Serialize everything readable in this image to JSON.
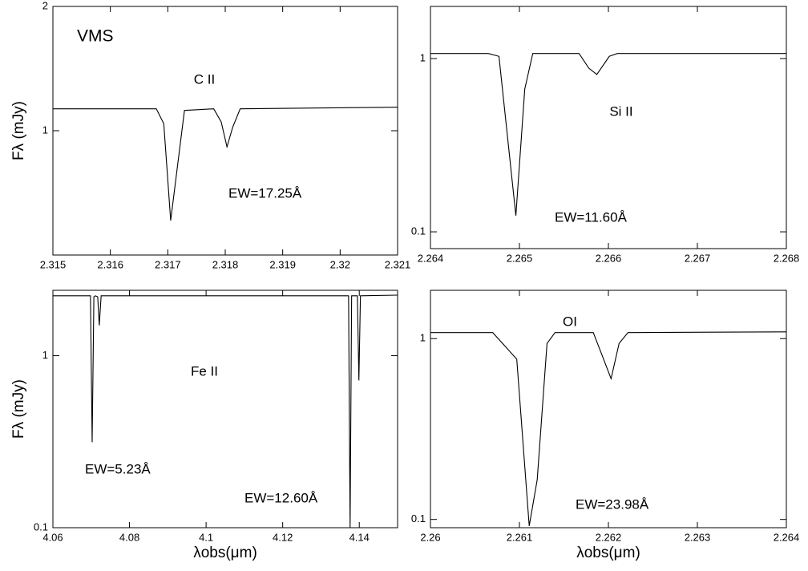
{
  "chart_data": [
    {
      "type": "line",
      "ylog": true,
      "color": "#000000",
      "annotations": [
        "VMS",
        "C II",
        "EW=17.25Å"
      ],
      "y_label": "Fλ  (mJy)",
      "x": [
        2.315,
        2.3168,
        2.31693,
        2.31705,
        2.31729,
        2.3178,
        2.31793,
        2.31803,
        2.31813,
        2.31826,
        2.321
      ],
      "values": [
        1.13,
        1.13,
        1.04,
        0.606,
        1.12,
        1.13,
        1.05,
        0.914,
        1.02,
        1.13,
        1.14
      ],
      "xlim": [
        2.315,
        2.321
      ],
      "xticks": [
        2.315,
        2.316,
        2.317,
        2.318,
        2.319,
        2.32,
        2.321
      ],
      "ylim": [
        0.5,
        2
      ],
      "yticks": [
        1,
        2
      ]
    },
    {
      "type": "line",
      "ylog": true,
      "color": "#000000",
      "annotations": [
        "Si II",
        "EW=11.60Å"
      ],
      "x": [
        2.264,
        2.26465,
        2.26477,
        2.26496,
        2.26506,
        2.26515,
        2.26567,
        2.26578,
        2.26587,
        2.26601,
        2.2661,
        2.268
      ],
      "values": [
        1.07,
        1.07,
        1.03,
        0.124,
        0.667,
        1.07,
        1.07,
        0.88,
        0.81,
        1.03,
        1.07,
        1.07
      ],
      "xlim": [
        2.264,
        2.268
      ],
      "xticks": [
        2.264,
        2.265,
        2.266,
        2.267,
        2.268
      ],
      "ylim": [
        0.08,
        2
      ],
      "yticks": [
        0.1,
        1
      ]
    },
    {
      "type": "line",
      "ylog": true,
      "color": "#000000",
      "annotations": [
        "Fe II",
        "EW=5.23Å",
        "EW=12.60Å"
      ],
      "y_label": "Fλ  (mJy)",
      "x_label": "λobs(μm)",
      "x": [
        4.06,
        4.0698,
        4.07025,
        4.0707,
        4.0711,
        4.0717,
        4.0721,
        4.0726,
        4.1372,
        4.1376,
        4.138,
        4.1395,
        4.1399,
        4.1403,
        4.15
      ],
      "values": [
        2.23,
        2.23,
        0.314,
        2.2,
        2.23,
        2.2,
        1.5,
        2.23,
        2.23,
        0.1,
        2.23,
        2.23,
        0.718,
        2.23,
        2.25
      ],
      "xlim": [
        4.06,
        4.15
      ],
      "xticks": [
        4.06,
        4.08,
        4.1,
        4.12,
        4.14
      ],
      "ylim": [
        0.1,
        2.4
      ],
      "yticks": [
        0.1,
        1
      ]
    },
    {
      "type": "line",
      "ylog": true,
      "color": "#000000",
      "annotations": [
        "OI",
        "EW=23.98Å"
      ],
      "x_label": "λobs(μm)",
      "x": [
        2.26,
        2.2607,
        2.26097,
        2.26111,
        2.2612,
        2.26131,
        2.2614,
        2.26183,
        2.26192,
        2.26203,
        2.26212,
        2.26222,
        2.264
      ],
      "values": [
        1.08,
        1.08,
        0.77,
        0.092,
        0.166,
        0.94,
        1.08,
        1.08,
        0.83,
        0.6,
        0.94,
        1.08,
        1.09
      ],
      "xlim": [
        2.26,
        2.264
      ],
      "xticks": [
        2.26,
        2.261,
        2.262,
        2.263,
        2.264
      ],
      "ylim": [
        0.09,
        1.85
      ],
      "yticks": [
        0.1,
        1
      ]
    }
  ]
}
